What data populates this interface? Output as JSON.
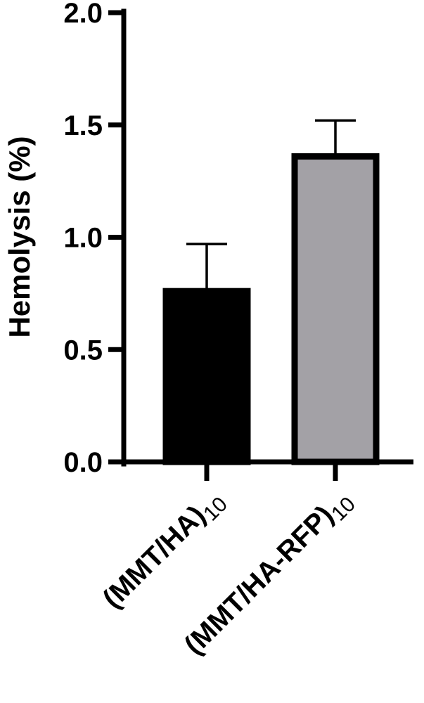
{
  "chart_data": {
    "type": "bar",
    "categories": [
      {
        "main": "(MMT/HA)",
        "sub": "10"
      },
      {
        "main": "(MMT/HA-RFP)",
        "sub": "10"
      }
    ],
    "values": [
      0.76,
      1.36
    ],
    "errors": [
      0.21,
      0.16
    ],
    "bar_colors": [
      "#000000",
      "#a3a1a6"
    ],
    "bar_edge_color": "#000000",
    "title": "",
    "xlabel": "",
    "ylabel": "Hemolysis (%)",
    "ylim": [
      0,
      2.0
    ],
    "yticks": [
      "0.0",
      "0.5",
      "1.0",
      "1.5",
      "2.0"
    ],
    "grid": false
  }
}
